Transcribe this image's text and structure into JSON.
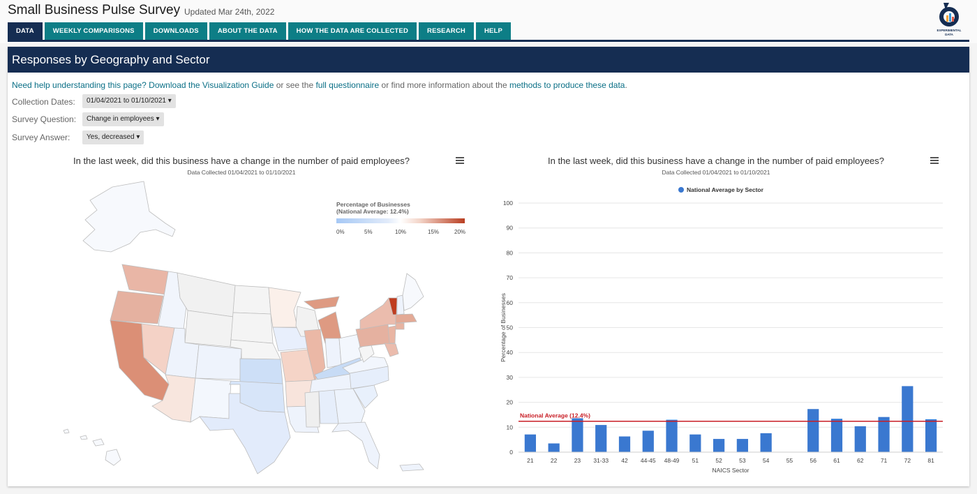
{
  "app": {
    "title": "Small Business Pulse Survey",
    "updated": "Updated Mar 24th, 2022",
    "logo_text": "EXPERIMENTAL DATA"
  },
  "nav": [
    {
      "label": "DATA",
      "active": true
    },
    {
      "label": "WEEKLY COMPARISONS"
    },
    {
      "label": "DOWNLOADS"
    },
    {
      "label": "ABOUT THE DATA"
    },
    {
      "label": "HOW THE DATA ARE COLLECTED"
    },
    {
      "label": "RESEARCH"
    },
    {
      "label": "HELP"
    }
  ],
  "panel": {
    "title": "Responses by Geography and Sector"
  },
  "help": {
    "prefix": "Need help understanding this page?",
    "link1": "Download the Visualization Guide",
    "mid1": "or see the",
    "link2": "full questionnaire",
    "mid2": "or find more information about the",
    "link3": "methods to produce these data",
    "suffix": "."
  },
  "controls": {
    "collection_label": "Collection Dates:",
    "collection_value": "01/04/2021 to 01/10/2021",
    "question_label": "Survey Question:",
    "question_value": "Change in employees",
    "answer_label": "Survey Answer:",
    "answer_value": "Yes, decreased"
  },
  "map": {
    "title": "In the last week, did this business have a change in the number of paid employees?",
    "subtitle": "Data Collected 01/04/2021 to 01/10/2021",
    "legend_title_1": "Percentage of Businesses",
    "legend_title_2": "(National Average: 12.4%)",
    "legend_ticks": [
      "0%",
      "5%",
      "10%",
      "15%",
      "20%"
    ]
  },
  "chart_data": {
    "type": "bar",
    "title": "In the last week, did this business have a change in the number of paid employees?",
    "subtitle": "Data Collected 01/04/2021 to 01/10/2021",
    "xlabel": "NAICS Sector",
    "ylabel": "Percentage of Businesses",
    "ylim": [
      0,
      100
    ],
    "yticks": [
      0,
      10,
      20,
      30,
      40,
      50,
      60,
      70,
      80,
      90,
      100
    ],
    "legend_position": "top-center",
    "categories": [
      "21",
      "22",
      "23",
      "31-33",
      "42",
      "44-45",
      "48-49",
      "51",
      "52",
      "53",
      "54",
      "55",
      "56",
      "61",
      "62",
      "71",
      "72",
      "81"
    ],
    "series": [
      {
        "name": "National Average by Sector",
        "color": "#3a78d0",
        "values": [
          7.1,
          3.5,
          13.6,
          10.9,
          6.3,
          8.6,
          13.0,
          7.1,
          5.3,
          5.3,
          7.6,
          null,
          17.3,
          13.4,
          10.4,
          14.1,
          26.5,
          13.2
        ]
      }
    ],
    "reference_line": {
      "label": "National Average (12.4%)",
      "value": 12.4,
      "color": "#c81d25"
    }
  },
  "colors": {
    "nav": "#0d7e86",
    "nav_active": "#152d52",
    "header": "#152d52",
    "link": "#0a6f86",
    "bar": "#3a78d0",
    "avg_line": "#c81d25"
  }
}
